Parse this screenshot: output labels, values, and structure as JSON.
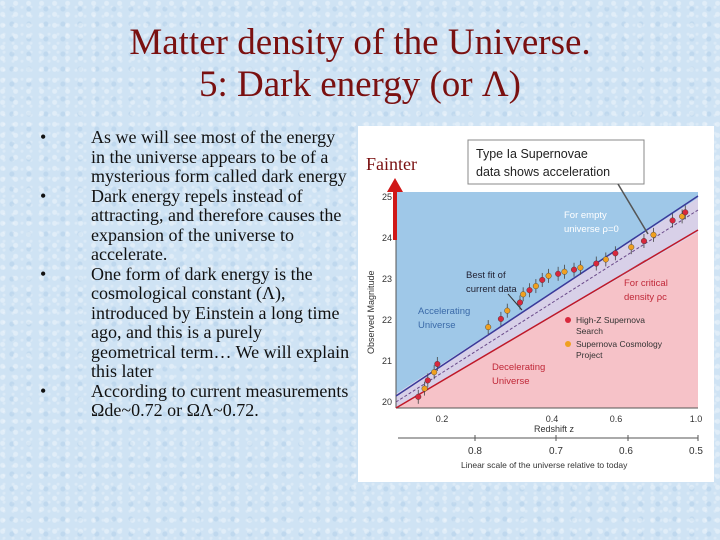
{
  "slide": {
    "title_line1": "Matter density of the Universe.",
    "title_line2": "5: Dark energy (or Λ)",
    "bullets": [
      {
        "bullet": "•",
        "text": "As we will see most of the energy in the universe appears to be of a mysterious form called dark energy"
      },
      {
        "bullet": "•",
        "text": "Dark energy repels instead of attracting, and therefore causes the expansion of the universe to accelerate."
      },
      {
        "bullet": "•",
        "text": "One form of dark energy is the cosmological constant (Λ), introduced by Einstein a long time ago, and this is a purely geometrical term…  We will explain this later"
      },
      {
        "bullet": "•",
        "text": "According to current measurements Ωde~0.72 or ΩΛ~0.72."
      }
    ],
    "fainter_label": "Fainter",
    "fainter_arrow_color": "#d01818"
  },
  "figure": {
    "callout_line1": "Type Ia Supernovae",
    "callout_line2": "data shows acceleration",
    "empty_line1": "For empty",
    "empty_line2": "universe ρ=0",
    "bestfit_line1": "Best fit of",
    "bestfit_line2": "current data",
    "critical_line1": "For critical",
    "critical_line2": "density ρc",
    "accel_line1": "Accelerating",
    "accel_line2": "Universe",
    "decel_line1": "Decelerating",
    "decel_line2": "Universe",
    "legend_hz_1": "High-Z Supernova",
    "legend_hz_2": "Search",
    "legend_scp_1": "Supernova Cosmology",
    "legend_scp_2": "Project",
    "ylabel": "Observed Magnitude",
    "y_ticks": [
      "20",
      "21",
      "22",
      "23",
      "24",
      "25"
    ],
    "xlabel": "Redshift  z",
    "x_ticks": [
      "0.2",
      "0.4",
      "0.6",
      "1.0"
    ],
    "scale_ticks": [
      "0.8",
      "0.7",
      "0.6",
      "0.5"
    ],
    "scale_label": "Linear scale of the universe relative to today",
    "colors": {
      "accelerating_region": "#9fc8e8",
      "decelerating_region": "#f6c2c8",
      "high_z": "#d8283c",
      "scp": "#f0a020",
      "empty_line": "#3a3a9a",
      "critical_line": "#c01828",
      "label_accel": "#3a6aa8",
      "label_decel": "#c02838"
    },
    "high_z_points": [
      {
        "z": 0.12,
        "m": 20.2
      },
      {
        "z": 0.15,
        "m": 20.6
      },
      {
        "z": 0.18,
        "m": 21.0
      },
      {
        "z": 0.38,
        "m": 22.1
      },
      {
        "z": 0.44,
        "m": 22.5
      },
      {
        "z": 0.47,
        "m": 22.8
      },
      {
        "z": 0.51,
        "m": 23.05
      },
      {
        "z": 0.56,
        "m": 23.2
      },
      {
        "z": 0.61,
        "m": 23.3
      },
      {
        "z": 0.68,
        "m": 23.45
      },
      {
        "z": 0.74,
        "m": 23.7
      },
      {
        "z": 0.83,
        "m": 24.0
      },
      {
        "z": 0.92,
        "m": 24.5
      },
      {
        "z": 0.96,
        "m": 24.7
      }
    ],
    "scp_points": [
      {
        "z": 0.14,
        "m": 20.4
      },
      {
        "z": 0.17,
        "m": 20.8
      },
      {
        "z": 0.34,
        "m": 21.9
      },
      {
        "z": 0.4,
        "m": 22.3
      },
      {
        "z": 0.45,
        "m": 22.7
      },
      {
        "z": 0.49,
        "m": 22.9
      },
      {
        "z": 0.53,
        "m": 23.15
      },
      {
        "z": 0.58,
        "m": 23.25
      },
      {
        "z": 0.63,
        "m": 23.35
      },
      {
        "z": 0.71,
        "m": 23.55
      },
      {
        "z": 0.79,
        "m": 23.85
      },
      {
        "z": 0.86,
        "m": 24.15
      },
      {
        "z": 0.95,
        "m": 24.6
      }
    ]
  }
}
